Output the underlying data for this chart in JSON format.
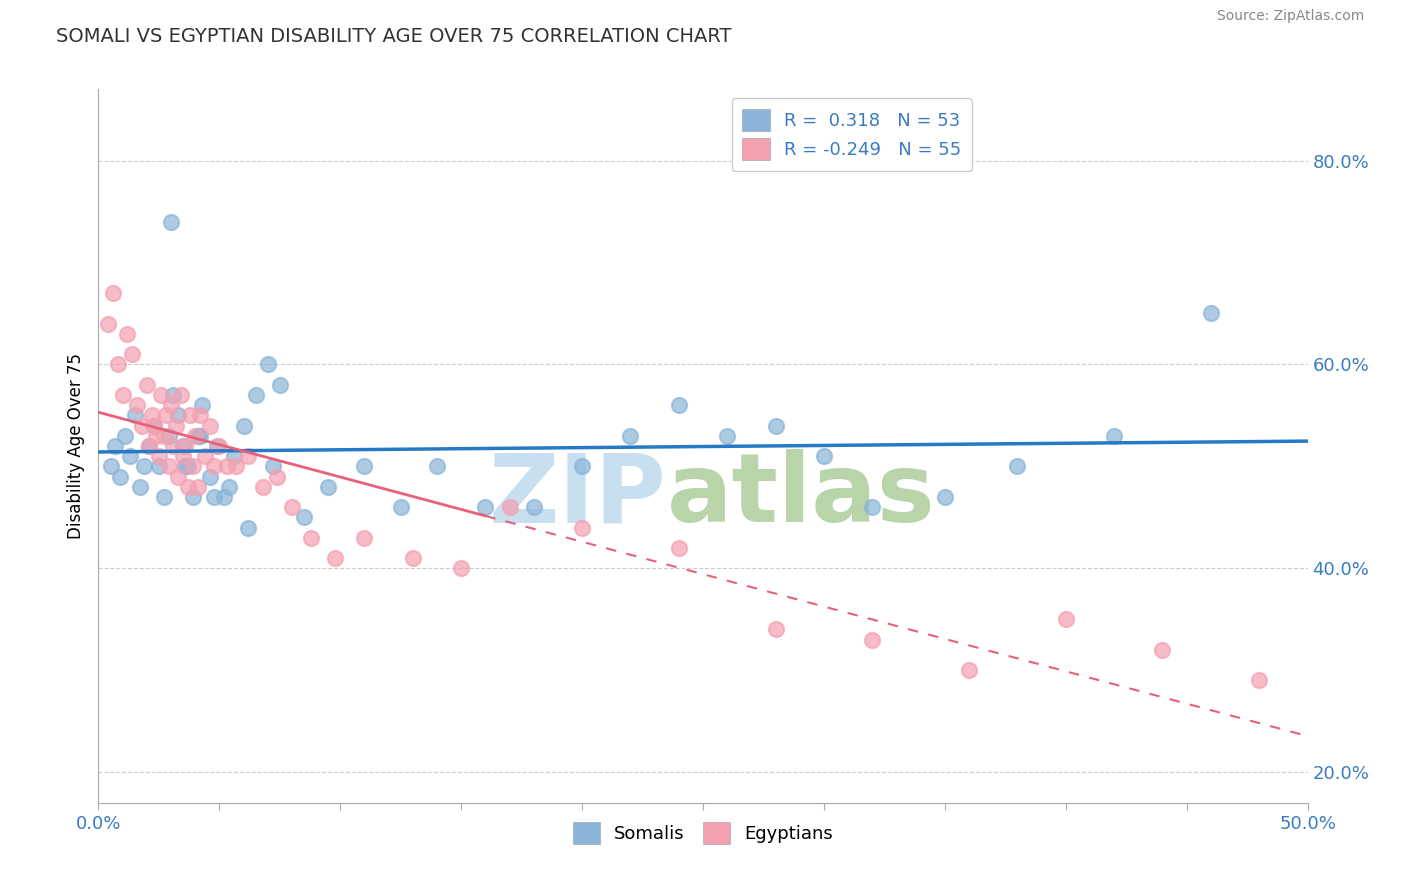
{
  "title": "SOMALI VS EGYPTIAN DISABILITY AGE OVER 75 CORRELATION CHART",
  "source": "Source: ZipAtlas.com",
  "ylabel": "Disability Age Over 75",
  "xlim": [
    0.0,
    50.0
  ],
  "ylim": [
    17.0,
    87.0
  ],
  "yticks": [
    20.0,
    40.0,
    60.0,
    80.0
  ],
  "xticks": [
    0.0,
    5.0,
    10.0,
    15.0,
    20.0,
    25.0,
    30.0,
    35.0,
    40.0,
    45.0,
    50.0
  ],
  "somali_R": 0.318,
  "somali_N": 53,
  "egyptian_R": -0.249,
  "egyptian_N": 55,
  "blue_color": "#8ab4d8",
  "pink_color": "#f4a0b0",
  "blue_line_color": "#2679c5",
  "pink_line_color": "#e8607a",
  "legend_text_color": "#3a7cbf",
  "watermark_zip_color": "#c8dff0",
  "watermark_atlas_color": "#b8d4a8",
  "somali_dots_x": [
    0.5,
    0.7,
    0.9,
    1.1,
    1.3,
    1.5,
    1.7,
    1.9,
    2.1,
    2.3,
    2.5,
    2.7,
    2.9,
    3.1,
    3.3,
    3.5,
    3.7,
    3.9,
    4.1,
    4.3,
    4.6,
    4.9,
    5.2,
    5.6,
    6.0,
    6.5,
    7.0,
    7.5,
    8.5,
    9.5,
    11.0,
    12.5,
    14.0,
    16.0,
    18.0,
    20.0,
    22.0,
    24.0,
    26.0,
    28.0,
    30.0,
    32.0,
    35.0,
    38.0,
    42.0,
    46.0,
    3.0,
    3.6,
    4.2,
    4.8,
    5.4,
    6.2,
    7.2
  ],
  "somali_dots_y": [
    50.0,
    52.0,
    49.0,
    53.0,
    51.0,
    55.0,
    48.0,
    50.0,
    52.0,
    54.0,
    50.0,
    47.0,
    53.0,
    57.0,
    55.0,
    52.0,
    50.0,
    47.0,
    53.0,
    56.0,
    49.0,
    52.0,
    47.0,
    51.0,
    54.0,
    57.0,
    60.0,
    58.0,
    45.0,
    48.0,
    50.0,
    46.0,
    50.0,
    46.0,
    46.0,
    50.0,
    53.0,
    56.0,
    53.0,
    54.0,
    51.0,
    46.0,
    47.0,
    50.0,
    53.0,
    65.0,
    74.0,
    50.0,
    53.0,
    47.0,
    48.0,
    44.0,
    50.0
  ],
  "egyptian_dots_x": [
    0.4,
    0.6,
    0.8,
    1.0,
    1.2,
    1.4,
    1.6,
    1.8,
    2.0,
    2.2,
    2.4,
    2.6,
    2.8,
    3.0,
    3.2,
    3.4,
    3.6,
    3.8,
    4.0,
    4.2,
    4.4,
    4.6,
    4.8,
    5.0,
    5.3,
    5.7,
    6.2,
    6.8,
    7.4,
    8.0,
    8.8,
    9.8,
    11.0,
    13.0,
    15.0,
    17.0,
    20.0,
    24.0,
    28.0,
    32.0,
    36.0,
    40.0,
    44.0,
    48.0,
    2.1,
    2.3,
    2.5,
    2.7,
    2.9,
    3.1,
    3.3,
    3.5,
    3.7,
    3.9,
    4.1
  ],
  "egyptian_dots_y": [
    64.0,
    67.0,
    60.0,
    57.0,
    63.0,
    61.0,
    56.0,
    54.0,
    58.0,
    55.0,
    53.0,
    57.0,
    55.0,
    56.0,
    54.0,
    57.0,
    52.0,
    55.0,
    53.0,
    55.0,
    51.0,
    54.0,
    50.0,
    52.0,
    50.0,
    50.0,
    51.0,
    48.0,
    49.0,
    46.0,
    43.0,
    41.0,
    43.0,
    41.0,
    40.0,
    46.0,
    44.0,
    42.0,
    34.0,
    33.0,
    30.0,
    35.0,
    32.0,
    29.0,
    52.0,
    54.0,
    51.0,
    53.0,
    50.0,
    52.0,
    49.0,
    51.0,
    48.0,
    50.0,
    48.0
  ]
}
